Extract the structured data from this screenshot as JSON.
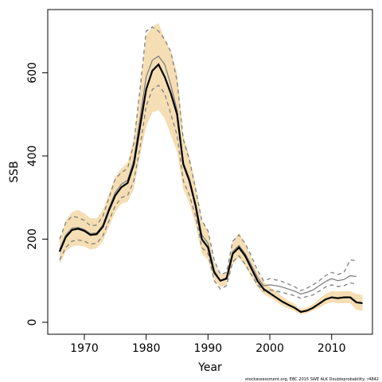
{
  "chart_data": {
    "type": "line",
    "xlabel": "Year",
    "ylabel": "SSB",
    "footnote": "stockassessment.org, EBC 2015 SWE ALK Doubleprobability, r4842",
    "x": [
      1966,
      1967,
      1968,
      1969,
      1970,
      1971,
      1972,
      1973,
      1974,
      1975,
      1976,
      1977,
      1978,
      1979,
      1980,
      1981,
      1982,
      1983,
      1984,
      1985,
      1986,
      1987,
      1988,
      1989,
      1990,
      1991,
      1992,
      1993,
      1994,
      1995,
      1996,
      1997,
      1998,
      1999,
      2000,
      2001,
      2002,
      2003,
      2004,
      2005,
      2006,
      2007,
      2008,
      2009,
      2010,
      2011,
      2012,
      2013,
      2014,
      2015
    ],
    "band": {
      "color": "#f5deb3",
      "upper": [
        195,
        245,
        265,
        270,
        262,
        250,
        250,
        270,
        310,
        350,
        370,
        385,
        440,
        560,
        690,
        710,
        720,
        680,
        650,
        600,
        450,
        400,
        330,
        245,
        220,
        145,
        115,
        120,
        195,
        215,
        190,
        155,
        120,
        98,
        85,
        75,
        62,
        52,
        44,
        32,
        36,
        44,
        56,
        68,
        75,
        74,
        75,
        75,
        68,
        66
      ],
      "lower": [
        140,
        170,
        182,
        185,
        182,
        175,
        178,
        195,
        230,
        265,
        285,
        290,
        320,
        400,
        470,
        505,
        510,
        490,
        450,
        410,
        320,
        285,
        235,
        165,
        150,
        100,
        85,
        90,
        140,
        155,
        135,
        110,
        85,
        68,
        60,
        50,
        40,
        33,
        27,
        19,
        22,
        28,
        35,
        44,
        48,
        46,
        46,
        46,
        30,
        28
      ]
    },
    "series": [
      {
        "color": "#808080",
        "dashed": true,
        "values": [
          200,
          240,
          255,
          252,
          245,
          232,
          234,
          255,
          300,
          345,
          360,
          370,
          430,
          560,
          700,
          710,
          700,
          680,
          650,
          580,
          440,
          390,
          320,
          245,
          220,
          150,
          115,
          120,
          195,
          210,
          190,
          160,
          125,
          100,
          105,
          102,
          98,
          92,
          86,
          76,
          82,
          90,
          100,
          112,
          120,
          115,
          120,
          150,
          148,
          null
        ]
      },
      {
        "color": "#808080",
        "dashed": true,
        "values": [
          150,
          180,
          195,
          198,
          195,
          188,
          190,
          208,
          245,
          280,
          300,
          305,
          340,
          420,
          520,
          560,
          570,
          550,
          500,
          450,
          340,
          305,
          255,
          180,
          165,
          100,
          80,
          88,
          145,
          160,
          140,
          115,
          90,
          75,
          78,
          75,
          72,
          68,
          64,
          58,
          62,
          66,
          75,
          85,
          90,
          86,
          88,
          95,
          92,
          null
        ]
      },
      {
        "color": "#808080",
        "dashed": false,
        "values": [
          175,
          210,
          226,
          228,
          223,
          213,
          215,
          234,
          275,
          312,
          332,
          342,
          390,
          490,
          590,
          630,
          640,
          620,
          570,
          510,
          385,
          345,
          285,
          210,
          190,
          125,
          100,
          108,
          170,
          185,
          165,
          138,
          108,
          88,
          90,
          88,
          85,
          80,
          75,
          68,
          72,
          78,
          88,
          98,
          105,
          100,
          103,
          112,
          110,
          null
        ]
      },
      {
        "color": "#000000",
        "dashed": false,
        "values": [
          170,
          205,
          222,
          225,
          220,
          210,
          212,
          230,
          270,
          305,
          325,
          335,
          380,
          470,
          560,
          605,
          620,
          590,
          550,
          500,
          380,
          340,
          280,
          200,
          180,
          120,
          100,
          105,
          165,
          180,
          160,
          130,
          100,
          80,
          70,
          60,
          50,
          42,
          35,
          25,
          28,
          35,
          45,
          55,
          60,
          58,
          60,
          60,
          48,
          46
        ]
      }
    ],
    "xlim": [
      1964.08,
      2016.6
    ],
    "ylim": [
      -28.7,
      752
    ],
    "xticks": [
      1970,
      1980,
      1990,
      2000,
      2010
    ],
    "yticks": [
      0,
      200,
      400,
      600
    ]
  }
}
